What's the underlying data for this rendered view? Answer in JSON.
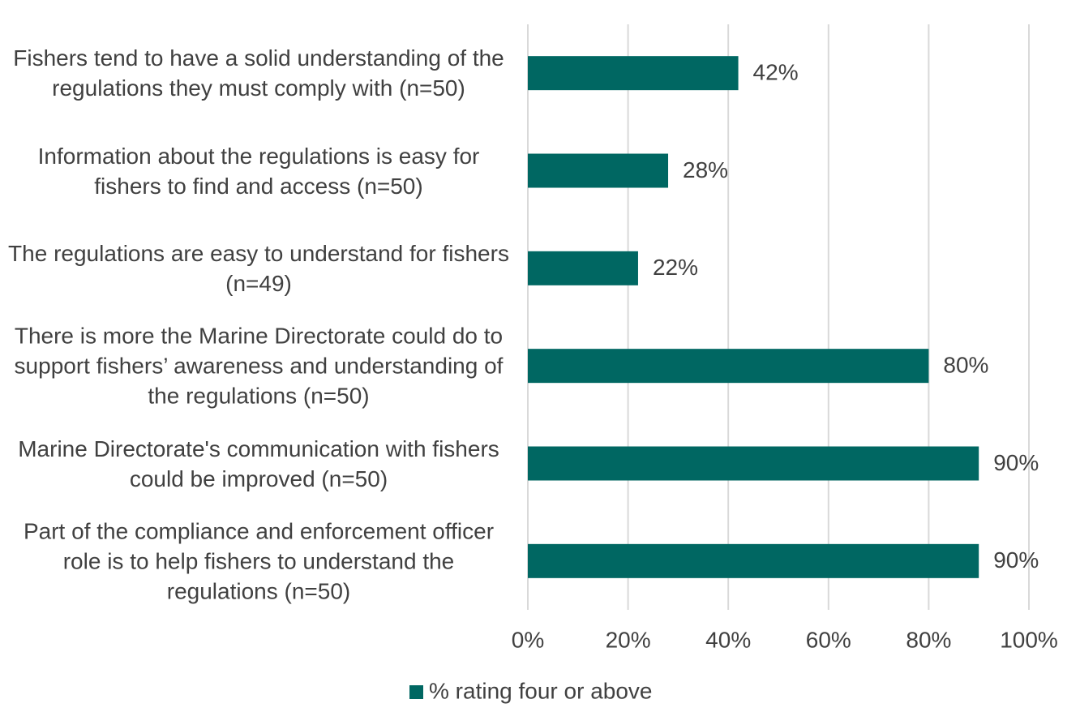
{
  "chart_data": {
    "type": "bar",
    "orientation": "horizontal",
    "categories": [
      "Fishers tend to have a solid understanding of the regulations they must comply with (n=50)",
      "Information about the regulations is easy for fishers to find and access (n=50)",
      "The regulations are easy to understand for fishers (n=49)",
      "There is more the Marine Directorate could do to support fishers’ awareness and understanding of the regulations (n=50)",
      "Marine Directorate's communication with fishers could be improved (n=50)",
      "Part of the compliance and enforcement officer role is to help fishers to understand the regulations (n=50)"
    ],
    "series": [
      {
        "name": "% rating four or above",
        "color": "#006762",
        "values": [
          42,
          28,
          22,
          80,
          90,
          90
        ],
        "value_labels": [
          "42%",
          "28%",
          "22%",
          "80%",
          "90%",
          "90%"
        ]
      }
    ],
    "xlim": [
      0,
      100
    ],
    "xticks": [
      {
        "value": 0,
        "label": "0%"
      },
      {
        "value": 20,
        "label": "20%"
      },
      {
        "value": 40,
        "label": "40%"
      },
      {
        "value": 60,
        "label": "60%"
      },
      {
        "value": 80,
        "label": "80%"
      },
      {
        "value": 100,
        "label": "100%"
      }
    ],
    "grid": true,
    "legend": "bottom"
  }
}
